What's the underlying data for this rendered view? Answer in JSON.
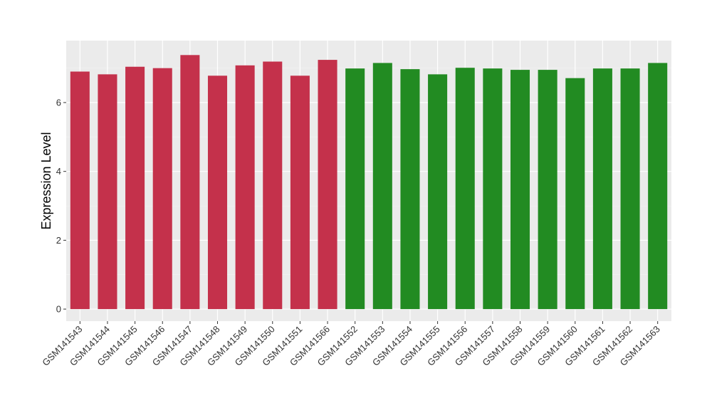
{
  "chart_data": {
    "type": "bar",
    "title": "",
    "xlabel": "",
    "ylabel": "Expression Level",
    "ylim": [
      -0.35,
      7.8
    ],
    "yticks": [
      0,
      2,
      4,
      6
    ],
    "grid": true,
    "legend": "none",
    "categories": [
      "GSM141543",
      "GSM141544",
      "GSM141545",
      "GSM141546",
      "GSM141547",
      "GSM141548",
      "GSM141549",
      "GSM141550",
      "GSM141551",
      "GSM141566",
      "GSM141552",
      "GSM141553",
      "GSM141554",
      "GSM141555",
      "GSM141556",
      "GSM141557",
      "GSM141558",
      "GSM141559",
      "GSM141560",
      "GSM141561",
      "GSM141562",
      "GSM141563"
    ],
    "values": [
      6.9,
      6.82,
      7.04,
      7.0,
      7.38,
      6.78,
      7.08,
      7.19,
      6.78,
      7.24,
      6.99,
      7.15,
      6.97,
      6.82,
      7.01,
      6.99,
      6.95,
      6.95,
      6.71,
      6.99,
      6.99,
      7.15
    ],
    "group_colors": [
      "#C4314B",
      "#C4314B",
      "#C4314B",
      "#C4314B",
      "#C4314B",
      "#C4314B",
      "#C4314B",
      "#C4314B",
      "#C4314B",
      "#C4314B",
      "#228B22",
      "#228B22",
      "#228B22",
      "#228B22",
      "#228B22",
      "#228B22",
      "#228B22",
      "#228B22",
      "#228B22",
      "#228B22",
      "#228B22",
      "#228B22"
    ]
  },
  "colors": {
    "panel_background": "#EBEBEB",
    "grid_major": "#FFFFFF",
    "grid_minor": "#F2F2F2",
    "tick": "#333333"
  }
}
